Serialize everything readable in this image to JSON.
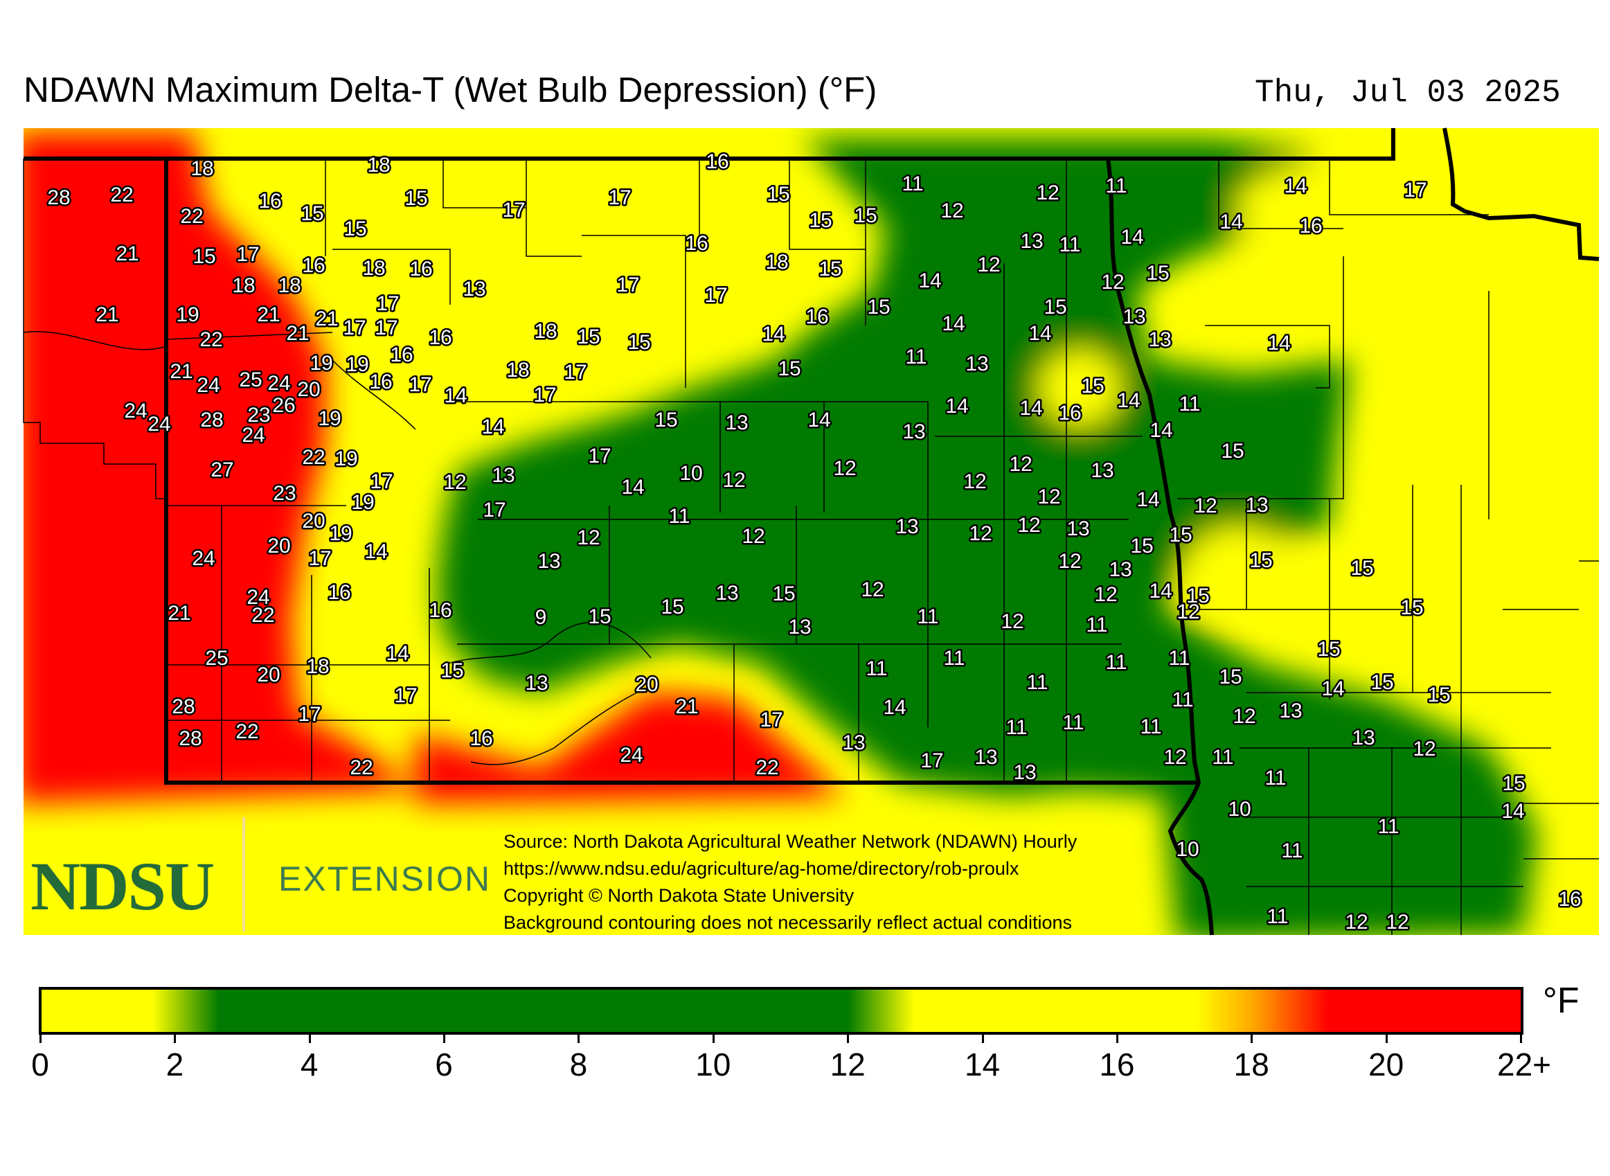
{
  "title": "NDAWN Maximum Delta-T (Wet Bulb Depression) (°F)",
  "date": "Thu, Jul 03 2025",
  "logo": {
    "ndsu": "NDSU",
    "extension": "EXTENSION"
  },
  "credits": [
    "Source: North Dakota Agricultural Weather Network (NDAWN) Hourly",
    "https://www.ndsu.edu/agriculture/ag-home/directory/rob-proulx",
    "Copyright © North Dakota State University",
    "Background contouring does not necessarily reflect actual conditions"
  ],
  "colorbar": {
    "unit": "°F",
    "ticks": [
      "0",
      "2",
      "4",
      "6",
      "8",
      "10",
      "12",
      "14",
      "16",
      "18",
      "20",
      "22+"
    ],
    "colors": {
      "yellow": "#ffff00",
      "green": "#007a00",
      "orange": "#ffa500",
      "red": "#ff0000"
    }
  },
  "stations": [
    [
      "28",
      85,
      285
    ],
    [
      "22",
      176,
      281
    ],
    [
      "18",
      292,
      243
    ],
    [
      "18",
      547,
      238
    ],
    [
      "16",
      1036,
      233
    ],
    [
      "22",
      277,
      312
    ],
    [
      "16",
      390,
      290
    ],
    [
      "15",
      451,
      308
    ],
    [
      "15",
      601,
      286
    ],
    [
      "15",
      513,
      330
    ],
    [
      "17",
      742,
      303
    ],
    [
      "17",
      895,
      285
    ],
    [
      "15",
      1124,
      280
    ],
    [
      "11",
      1318,
      265
    ],
    [
      "12",
      1375,
      304
    ],
    [
      "12",
      1513,
      278
    ],
    [
      "11",
      1612,
      268
    ],
    [
      "14",
      1871,
      268
    ],
    [
      "17",
      2044,
      274
    ],
    [
      "15",
      1185,
      318
    ],
    [
      "15",
      1250,
      311
    ],
    [
      "14",
      1778,
      320
    ],
    [
      "16",
      1893,
      326
    ],
    [
      "21",
      184,
      366
    ],
    [
      "15",
      295,
      370
    ],
    [
      "17",
      358,
      367
    ],
    [
      "16",
      453,
      383
    ],
    [
      "18",
      540,
      387
    ],
    [
      "16",
      608,
      388
    ],
    [
      "16",
      1006,
      351
    ],
    [
      "18",
      1122,
      378
    ],
    [
      "15",
      1199,
      388
    ],
    [
      "13",
      1490,
      348
    ],
    [
      "11",
      1545,
      353
    ],
    [
      "14",
      1635,
      342
    ],
    [
      "12",
      1428,
      382
    ],
    [
      "13",
      685,
      417
    ],
    [
      "17",
      907,
      411
    ],
    [
      "17",
      1034,
      426
    ],
    [
      "14",
      1343,
      405
    ],
    [
      "12",
      1607,
      407
    ],
    [
      "15",
      1672,
      394
    ],
    [
      "18",
      352,
      412
    ],
    [
      "18",
      418,
      412
    ],
    [
      "21",
      155,
      454
    ],
    [
      "19",
      271,
      454
    ],
    [
      "21",
      388,
      454
    ],
    [
      "21",
      472,
      460
    ],
    [
      "17",
      560,
      438
    ],
    [
      "17",
      512,
      473
    ],
    [
      "17",
      558,
      473
    ],
    [
      "18",
      788,
      478
    ],
    [
      "15",
      850,
      486
    ],
    [
      "15",
      923,
      494
    ],
    [
      "16",
      1180,
      457
    ],
    [
      "15",
      1269,
      443
    ],
    [
      "14",
      1117,
      482
    ],
    [
      "14",
      1377,
      467
    ],
    [
      "15",
      1524,
      443
    ],
    [
      "14",
      1502,
      481
    ],
    [
      "13",
      1638,
      457
    ],
    [
      "13",
      1675,
      490
    ],
    [
      "14",
      1847,
      495
    ],
    [
      "22",
      305,
      490
    ],
    [
      "21",
      430,
      481
    ],
    [
      "16",
      636,
      487
    ],
    [
      "11",
      1323,
      515
    ],
    [
      "13",
      1411,
      525
    ],
    [
      "21",
      262,
      536
    ],
    [
      "19",
      464,
      524
    ],
    [
      "19",
      516,
      526
    ],
    [
      "16",
      580,
      512
    ],
    [
      "18",
      748,
      534
    ],
    [
      "17",
      831,
      537
    ],
    [
      "15",
      1140,
      532
    ],
    [
      "24",
      301,
      556
    ],
    [
      "25",
      362,
      548
    ],
    [
      "24",
      403,
      553
    ],
    [
      "20",
      446,
      562
    ],
    [
      "26",
      410,
      585
    ],
    [
      "16",
      550,
      551
    ],
    [
      "17",
      607,
      555
    ],
    [
      "14",
      658,
      571
    ],
    [
      "17",
      787,
      570
    ],
    [
      "15",
      1578,
      557
    ],
    [
      "14",
      1630,
      578
    ],
    [
      "11",
      1718,
      583
    ],
    [
      "24",
      196,
      593
    ],
    [
      "24",
      230,
      612
    ],
    [
      "28",
      306,
      606
    ],
    [
      "23",
      374,
      599
    ],
    [
      "19",
      476,
      604
    ],
    [
      "24",
      366,
      628
    ],
    [
      "14",
      1382,
      586
    ],
    [
      "14",
      1489,
      589
    ],
    [
      "16",
      1545,
      596
    ],
    [
      "15",
      962,
      606
    ],
    [
      "13",
      1064,
      610
    ],
    [
      "14",
      1183,
      606
    ],
    [
      "13",
      1320,
      623
    ],
    [
      "14",
      712,
      616
    ],
    [
      "14",
      1677,
      621
    ],
    [
      "22",
      453,
      660
    ],
    [
      "19",
      500,
      662
    ],
    [
      "17",
      866,
      658
    ],
    [
      "15",
      1780,
      651
    ],
    [
      "27",
      321,
      678
    ],
    [
      "12",
      1220,
      676
    ],
    [
      "12",
      1474,
      670
    ],
    [
      "13",
      1592,
      679
    ],
    [
      "12",
      657,
      696
    ],
    [
      "13",
      727,
      686
    ],
    [
      "10",
      998,
      683
    ],
    [
      "12",
      1060,
      693
    ],
    [
      "12",
      1408,
      695
    ],
    [
      "17",
      551,
      695
    ],
    [
      "19",
      524,
      725
    ],
    [
      "23",
      411,
      712
    ],
    [
      "14",
      914,
      703
    ],
    [
      "12",
      1515,
      717
    ],
    [
      "14",
      1658,
      721
    ],
    [
      "12",
      1741,
      730
    ],
    [
      "13",
      1815,
      729
    ],
    [
      "17",
      714,
      736
    ],
    [
      "11",
      981,
      745
    ],
    [
      "20",
      453,
      752
    ],
    [
      "19",
      492,
      770
    ],
    [
      "13",
      1310,
      760
    ],
    [
      "12",
      1416,
      770
    ],
    [
      "12",
      1486,
      758
    ],
    [
      "13",
      1557,
      763
    ],
    [
      "15",
      1649,
      788
    ],
    [
      "15",
      1705,
      772
    ],
    [
      "12",
      850,
      776
    ],
    [
      "12",
      1088,
      774
    ],
    [
      "20",
      403,
      788
    ],
    [
      "14",
      543,
      796
    ],
    [
      "24",
      294,
      806
    ],
    [
      "17",
      462,
      806
    ],
    [
      "13",
      793,
      810
    ],
    [
      "12",
      1545,
      810
    ],
    [
      "13",
      1618,
      822
    ],
    [
      "15",
      1821,
      809
    ],
    [
      "15",
      1967,
      820
    ],
    [
      "16",
      490,
      855
    ],
    [
      "14",
      1676,
      853
    ],
    [
      "12",
      1597,
      858
    ],
    [
      "15",
      1730,
      860
    ],
    [
      "13",
      1050,
      856
    ],
    [
      "15",
      1132,
      857
    ],
    [
      "12",
      1260,
      851
    ],
    [
      "24",
      373,
      862
    ],
    [
      "21",
      259,
      885
    ],
    [
      "22",
      380,
      888
    ],
    [
      "16",
      636,
      881
    ],
    [
      "9",
      781,
      891
    ],
    [
      "15",
      866,
      890
    ],
    [
      "15",
      971,
      876
    ],
    [
      "11",
      1340,
      890
    ],
    [
      "12",
      1462,
      897
    ],
    [
      "11",
      1584,
      902
    ],
    [
      "12",
      1716,
      883
    ],
    [
      "15",
      2039,
      877
    ],
    [
      "13",
      1155,
      905
    ],
    [
      "14",
      574,
      943
    ],
    [
      "25",
      313,
      950
    ],
    [
      "18",
      459,
      962
    ],
    [
      "15",
      653,
      968
    ],
    [
      "11",
      1378,
      950
    ],
    [
      "11",
      1612,
      956
    ],
    [
      "11",
      1703,
      950
    ],
    [
      "15",
      1919,
      937
    ],
    [
      "20",
      388,
      974
    ],
    [
      "11",
      1266,
      965
    ],
    [
      "13",
      775,
      986
    ],
    [
      "15",
      1777,
      977
    ],
    [
      "11",
      1498,
      985
    ],
    [
      "14",
      1925,
      994
    ],
    [
      "15",
      1996,
      985
    ],
    [
      "15",
      2078,
      1003
    ],
    [
      "20",
      934,
      988
    ],
    [
      "17",
      586,
      1004
    ],
    [
      "28",
      265,
      1020
    ],
    [
      "21",
      992,
      1020
    ],
    [
      "11",
      1708,
      1010
    ],
    [
      "14",
      1292,
      1021
    ],
    [
      "12",
      1797,
      1034
    ],
    [
      "13",
      1864,
      1026
    ],
    [
      "17",
      447,
      1031
    ],
    [
      "17",
      1114,
      1039
    ],
    [
      "28",
      275,
      1066
    ],
    [
      "22",
      357,
      1056
    ],
    [
      "11",
      1468,
      1050
    ],
    [
      "11",
      1550,
      1043
    ],
    [
      "11",
      1662,
      1049
    ],
    [
      "16",
      695,
      1066
    ],
    [
      "13",
      1233,
      1072
    ],
    [
      "13",
      1969,
      1065
    ],
    [
      "12",
      2057,
      1081
    ],
    [
      "24",
      912,
      1090
    ],
    [
      "13",
      1424,
      1093
    ],
    [
      "12",
      1697,
      1093
    ],
    [
      "11",
      1766,
      1093
    ],
    [
      "22",
      522,
      1108
    ],
    [
      "22",
      1108,
      1108
    ],
    [
      "17",
      1346,
      1098
    ],
    [
      "13",
      1480,
      1115
    ],
    [
      "11",
      1842,
      1123
    ],
    [
      "15",
      2186,
      1131
    ],
    [
      "10",
      1790,
      1168
    ],
    [
      "14",
      2185,
      1171
    ],
    [
      "11",
      2005,
      1193
    ],
    [
      "10",
      1715,
      1226
    ],
    [
      "11",
      1866,
      1228
    ],
    [
      "16",
      2267,
      1298
    ],
    [
      "11",
      1845,
      1323
    ],
    [
      "12",
      1959,
      1331
    ],
    [
      "12",
      2018,
      1331
    ]
  ]
}
